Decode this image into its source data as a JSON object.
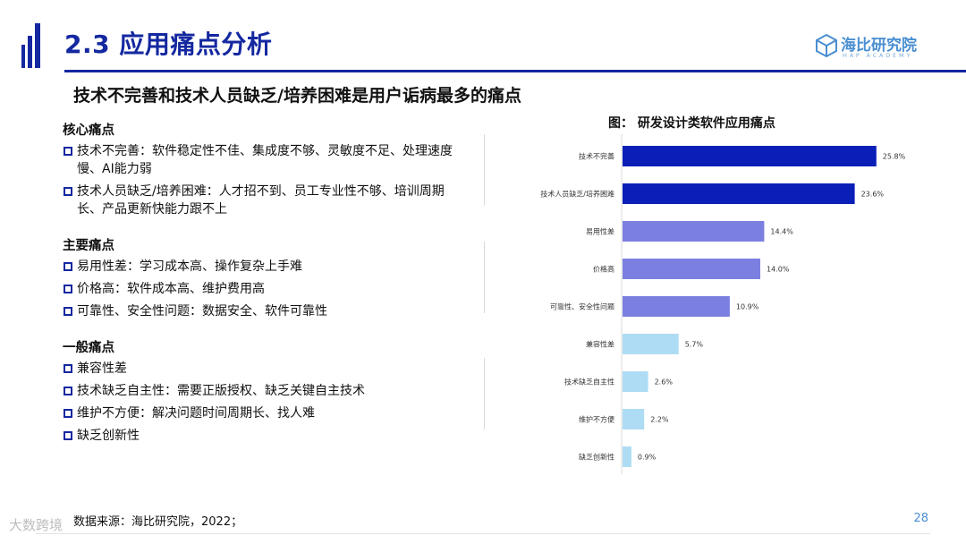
{
  "header": {
    "title": "2.3 应用痛点分析",
    "subtitle": "技术不完善和技术人员缺乏/培养困难是用户诟病最多的痛点",
    "logo_cn": "海比研究院",
    "logo_en": "HAP ACADEMY",
    "accent": "#1428a0"
  },
  "left": {
    "groups": [
      {
        "heading": "核心痛点",
        "items": [
          "技术不完善：软件稳定性不佳、集成度不够、灵敏度不足、处理速度慢、AI能力弱",
          "技术人员缺乏/培养困难：人才招不到、员工专业性不够、培训周期长、产品更新快能力跟不上"
        ]
      },
      {
        "heading": "主要痛点",
        "items": [
          "易用性差：学习成本高、操作复杂上手难",
          "价格高：软件成本高、维护费用高",
          "可靠性、安全性问题：数据安全、软件可靠性"
        ]
      },
      {
        "heading": "一般痛点",
        "items": [
          "兼容性差",
          "技术缺乏自主性：需要正版授权、缺乏关键自主技术",
          "维护不方便：解决问题时间周期长、找人难",
          "缺乏创新性"
        ]
      }
    ]
  },
  "chart_title": "图：  研发设计类软件应用痛点",
  "chart_data": {
    "type": "bar",
    "orientation": "horizontal",
    "title": "图：  研发设计类软件应用痛点",
    "categories": [
      "技术不完善",
      "技术人员缺乏/培养困难",
      "易用性差",
      "价格高",
      "可靠性、安全性问题",
      "兼容性差",
      "技术缺乏自主性",
      "维护不方便",
      "缺乏创新性"
    ],
    "values": [
      25.8,
      23.6,
      14.4,
      14.0,
      10.9,
      5.7,
      2.6,
      2.2,
      0.9
    ],
    "value_labels": [
      "25.8%",
      "23.6%",
      "14.4%",
      "14.0%",
      "10.9%",
      "5.7%",
      "2.6%",
      "2.2%",
      "0.9%"
    ],
    "colors": [
      "#0a1fb8",
      "#0a1fb8",
      "#7b80e0",
      "#7b80e0",
      "#7b80e0",
      "#aedcf5",
      "#aedcf5",
      "#aedcf5",
      "#aedcf5"
    ],
    "xlim": [
      0,
      30
    ],
    "grid": false,
    "legend": "none"
  },
  "footer": {
    "source": "数据来源：海比研究院，2022；",
    "page": "28",
    "watermark": "大数跨境"
  }
}
